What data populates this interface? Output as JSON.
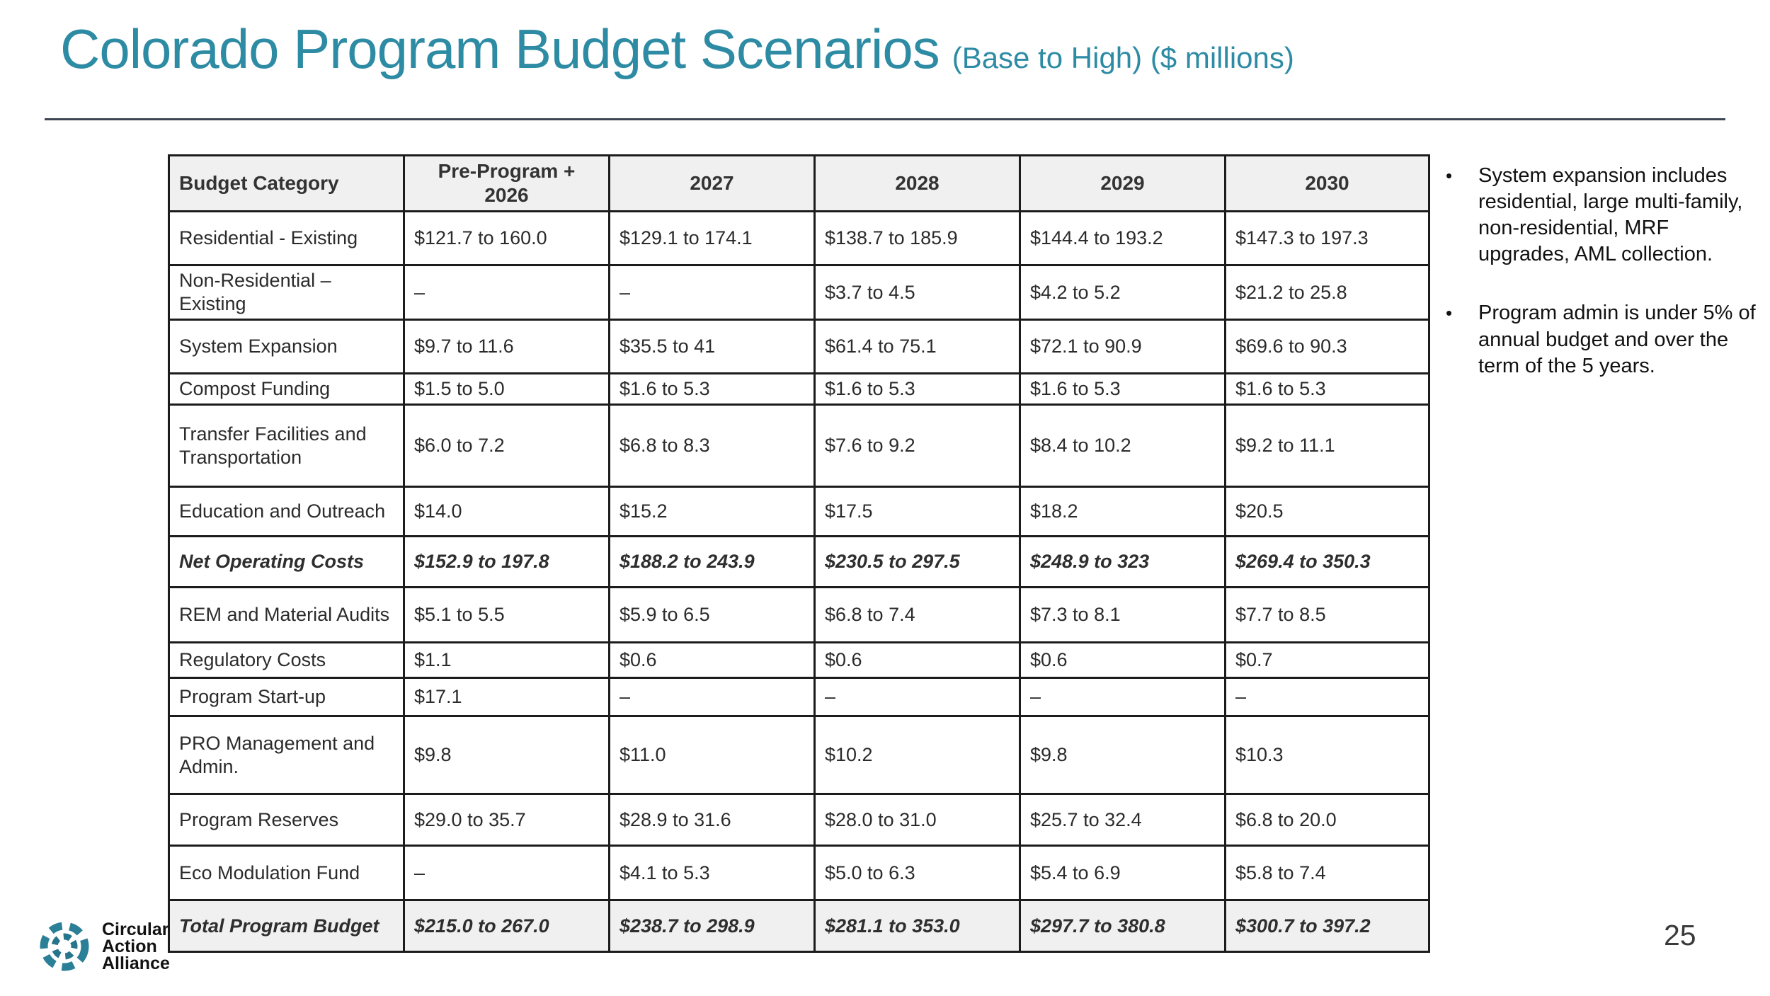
{
  "header": {
    "title": "Colorado Program Budget Scenarios",
    "subtitle": "(Base to High) ($ millions)"
  },
  "table": {
    "columns": [
      "Budget Category",
      "Pre-Program + 2026",
      "2027",
      "2028",
      "2029",
      "2030"
    ],
    "rows": [
      {
        "category": "Residential - Existing",
        "values": [
          "$121.7 to 160.0",
          "$129.1 to 174.1",
          "$138.7 to 185.9",
          "$144.4 to 193.2",
          "$147.3 to 197.3"
        ],
        "style": "normal"
      },
      {
        "category": "Non-Residential – Existing",
        "values": [
          "–",
          "–",
          "$3.7 to 4.5",
          "$4.2 to 5.2",
          "$21.2 to 25.8"
        ],
        "style": "normal"
      },
      {
        "category": "System Expansion",
        "values": [
          "$9.7 to 11.6",
          "$35.5 to 41",
          "$61.4 to 75.1",
          "$72.1 to 90.9",
          "$69.6 to 90.3"
        ],
        "style": "normal"
      },
      {
        "category": "Compost Funding",
        "values": [
          "$1.5 to 5.0",
          "$1.6 to 5.3",
          "$1.6 to 5.3",
          "$1.6 to 5.3",
          "$1.6 to 5.3"
        ],
        "style": "normal"
      },
      {
        "category": "Transfer Facilities and Transportation",
        "values": [
          "$6.0 to 7.2",
          "$6.8 to 8.3",
          "$7.6 to 9.2",
          "$8.4 to 10.2",
          "$9.2 to 11.1"
        ],
        "style": "normal"
      },
      {
        "category": "Education and Outreach",
        "values": [
          "$14.0",
          "$15.2",
          "$17.5",
          "$18.2",
          "$20.5"
        ],
        "style": "normal"
      },
      {
        "category": "Net Operating Costs",
        "values": [
          "$152.9 to 197.8",
          "$188.2 to 243.9",
          "$230.5 to 297.5",
          "$248.9 to 323",
          "$269.4 to 350.3"
        ],
        "style": "subtotal"
      },
      {
        "category": "REM and Material Audits",
        "values": [
          "$5.1 to 5.5",
          "$5.9 to 6.5",
          "$6.8 to 7.4",
          "$7.3 to 8.1",
          "$7.7 to 8.5"
        ],
        "style": "normal"
      },
      {
        "category": "Regulatory Costs",
        "values": [
          "$1.1",
          "$0.6",
          "$0.6",
          "$0.6",
          "$0.7"
        ],
        "style": "normal"
      },
      {
        "category": "Program Start-up",
        "values": [
          "$17.1",
          "–",
          "–",
          "–",
          "–"
        ],
        "style": "normal"
      },
      {
        "category": "PRO Management and Admin.",
        "values": [
          "$9.8",
          "$11.0",
          "$10.2",
          "$9.8",
          "$10.3"
        ],
        "style": "normal"
      },
      {
        "category": "Program Reserves",
        "values": [
          "$29.0 to 35.7",
          "$28.9 to 31.6",
          "$28.0 to 31.0",
          "$25.7 to 32.4",
          "$6.8 to 20.0"
        ],
        "style": "normal"
      },
      {
        "category": "Eco Modulation Fund",
        "values": [
          "–",
          "$4.1 to 5.3",
          "$5.0 to 6.3",
          "$5.4 to 6.9",
          "$5.8 to 7.4"
        ],
        "style": "normal"
      },
      {
        "category": "Total Program Budget",
        "values": [
          "$215.0 to 267.0",
          "$238.7 to 298.9",
          "$281.1 to 353.0",
          "$297.7 to 380.8",
          "$300.7 to 397.2"
        ],
        "style": "total"
      }
    ]
  },
  "notes": {
    "bullets": [
      "System expansion includes residential, large multi-family, non-residential, MRF upgrades, AML collection.",
      "Program admin is under 5% of annual budget and over the term of the 5 years."
    ]
  },
  "footer": {
    "logo_lines": [
      "Circular",
      "Action",
      "Alliance"
    ],
    "page_number": "25"
  },
  "colors": {
    "accent_teal": "#2d8ba4",
    "logo_teal": "#2b7f96",
    "divider": "#3d4452",
    "table_border": "#1c1c1c",
    "header_row_bg": "#f0f0f0",
    "total_row_bg": "#f0f0f0",
    "body_text": "#2b2b2b"
  }
}
